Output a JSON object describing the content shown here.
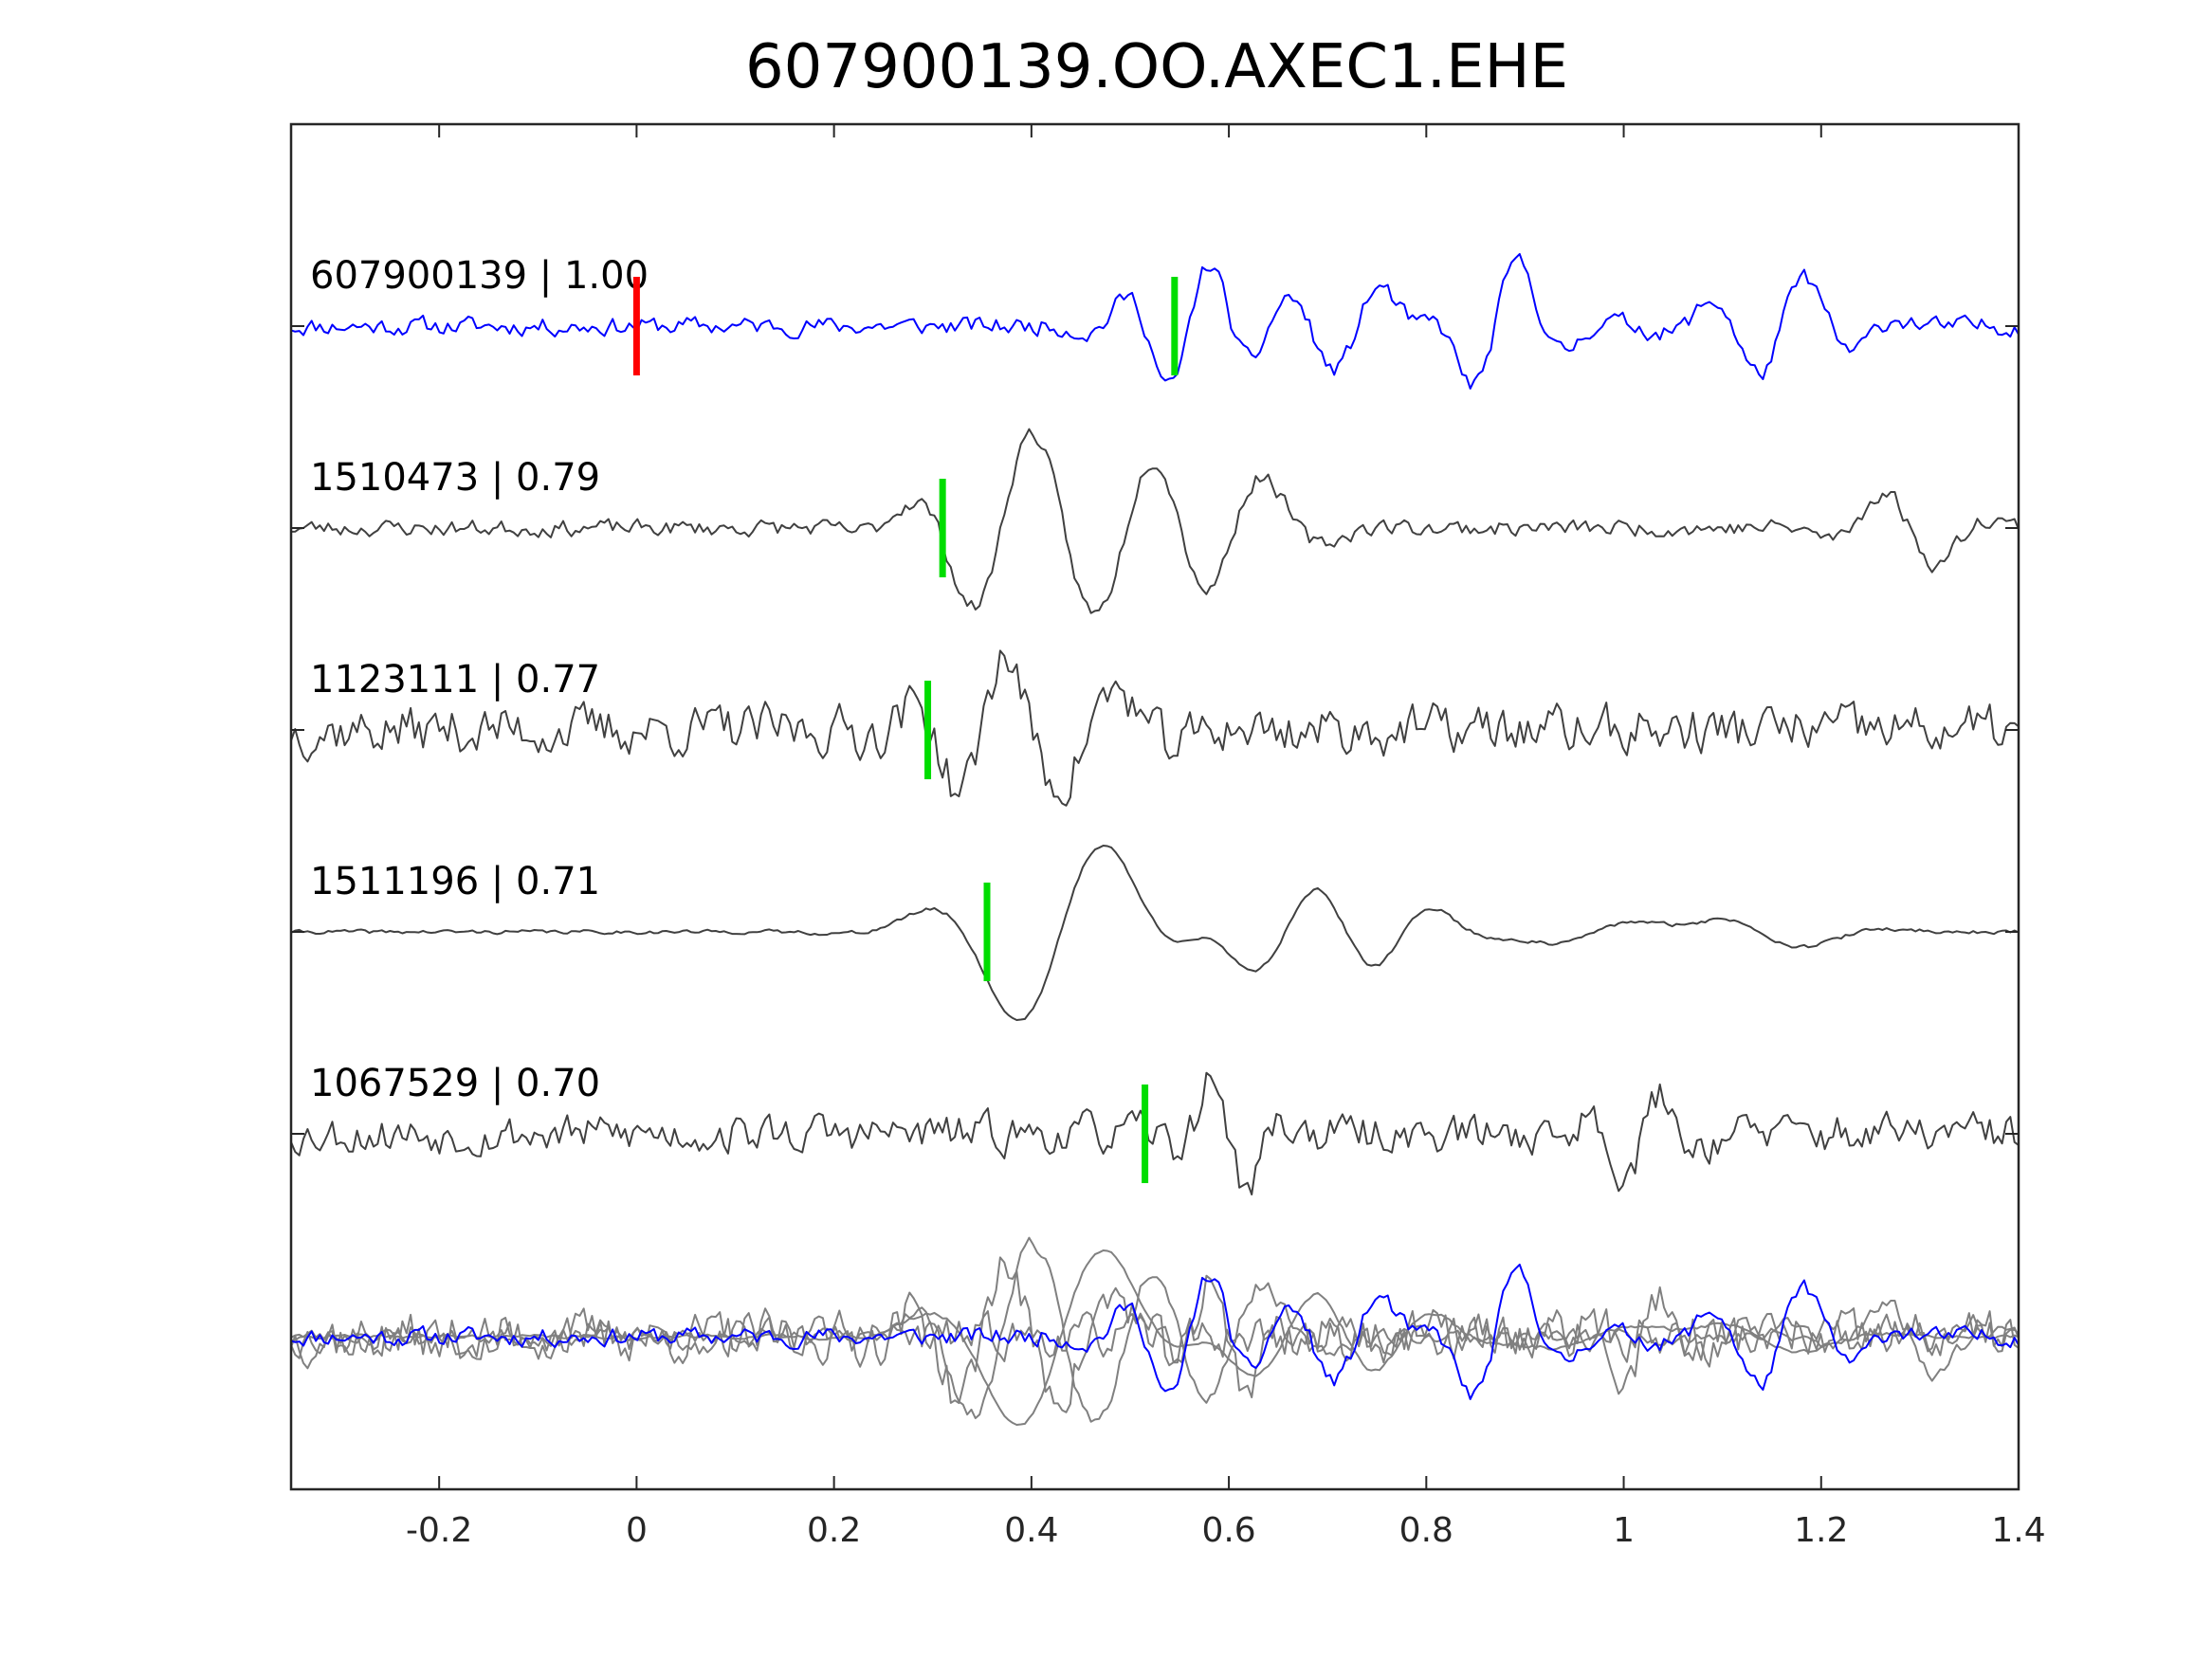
{
  "chart_data": {
    "type": "line",
    "title": "607900139.OO.AXEC1.EHE",
    "xlabel": "",
    "ylabel": "",
    "xlim": [
      -0.35,
      1.4
    ],
    "xticks": [
      -0.2,
      0,
      0.2,
      0.4,
      0.6,
      0.8,
      1,
      1.2,
      1.4
    ],
    "xtick_labels": [
      "-0.2",
      "0",
      "0.2",
      "0.4",
      "0.6",
      "0.8",
      "1",
      "1.2",
      "1.4"
    ],
    "grid": false,
    "traces": [
      {
        "label": "607900139 | 1.00",
        "event_id": "607900139",
        "correlation": 1.0,
        "color": "#0000ff",
        "pick_color": "#ff0000",
        "pick_time": 0.0,
        "pick2_color": "#00dd00",
        "pick2_time": 0.545,
        "noise": 0.28,
        "wavelets": [
          {
            "t": 0.56,
            "a": 1.3,
            "p": 0.09,
            "w": 0.05
          },
          {
            "t": 0.73,
            "a": 0.9,
            "p": 0.1,
            "w": 0.06
          },
          {
            "t": 0.87,
            "a": 1.4,
            "p": 0.1,
            "w": 0.05
          },
          {
            "t": 1.16,
            "a": 1.0,
            "p": 0.1,
            "w": 0.06
          }
        ],
        "seed": 11
      },
      {
        "label": "1510473 | 0.79",
        "event_id": "1510473",
        "correlation": 0.79,
        "color": "#404040",
        "pick_color": "#00dd00",
        "pick_time": 0.31,
        "noise": 0.25,
        "wavelets": [
          {
            "t": 0.37,
            "a": 1.7,
            "p": 0.13,
            "w": 0.06
          },
          {
            "t": 0.5,
            "a": 1.4,
            "p": 0.14,
            "w": 0.06
          },
          {
            "t": 0.6,
            "a": 1.2,
            "p": 0.14,
            "w": 0.06
          },
          {
            "t": 1.29,
            "a": -0.8,
            "p": 0.12,
            "w": 0.05
          }
        ],
        "seed": 23
      },
      {
        "label": "1123111 | 0.77",
        "event_id": "1123111",
        "correlation": 0.77,
        "color": "#404040",
        "pick_color": "#00dd00",
        "pick_time": 0.295,
        "noise": 0.75,
        "wavelets": [
          {
            "t": 0.35,
            "a": 1.3,
            "p": 0.1,
            "w": 0.05
          },
          {
            "t": 0.46,
            "a": 0.8,
            "p": 0.12,
            "w": 0.06
          }
        ],
        "seed": 37
      },
      {
        "label": "1511196 | 0.71",
        "event_id": "1511196",
        "correlation": 0.71,
        "color": "#404040",
        "pick_color": "#00dd00",
        "pick_time": 0.355,
        "noise": 0.06,
        "wavelets": [
          {
            "t": 0.43,
            "a": 2.0,
            "p": 0.2,
            "w": 0.08
          },
          {
            "t": 0.66,
            "a": 0.8,
            "p": 0.14,
            "w": 0.07
          },
          {
            "t": 0.77,
            "a": 0.5,
            "p": 0.14,
            "w": 0.06
          },
          {
            "t": 0.97,
            "a": 0.3,
            "p": 0.2,
            "w": 0.07
          },
          {
            "t": 1.14,
            "a": -0.35,
            "p": 0.2,
            "w": 0.07
          }
        ],
        "seed": 41
      },
      {
        "label": "1067529 | 0.70",
        "event_id": "1067529",
        "correlation": 0.7,
        "color": "#404040",
        "pick_color": "#00dd00",
        "pick_time": 0.515,
        "noise": 0.6,
        "wavelets": [
          {
            "t": 0.6,
            "a": -1.3,
            "p": 0.08,
            "w": 0.03
          },
          {
            "t": 1.02,
            "a": 0.8,
            "p": 0.08,
            "w": 0.04
          }
        ],
        "seed": 53
      }
    ],
    "overlay": {
      "label": "",
      "colors": {
        "reference": "#0000ff",
        "others": "#808080"
      }
    }
  }
}
